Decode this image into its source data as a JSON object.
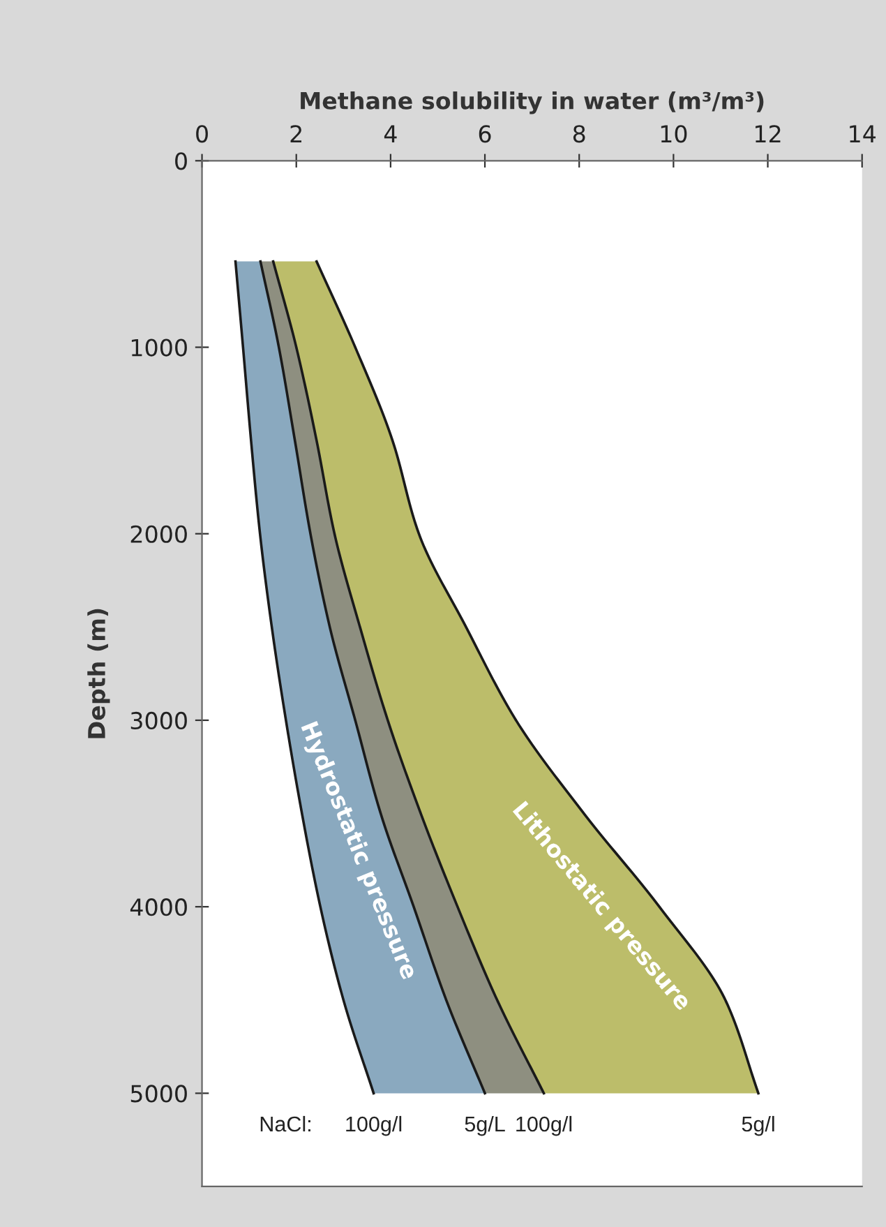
{
  "chart_data": {
    "type": "area",
    "orientation": "horizontal",
    "stacked": true,
    "xlabel": "Methane solubility in water (m³/m³)",
    "ylabel": "Depth (m)",
    "x": [
      540,
      1000,
      1500,
      2000,
      2500,
      3000,
      3500,
      4000,
      4500,
      5000
    ],
    "series": [
      {
        "name": "100g/l",
        "color": "#ffffff",
        "values": [
          0.71,
          0.87,
          1.04,
          1.23,
          1.48,
          1.78,
          2.12,
          2.51,
          3.0,
          3.64
        ]
      },
      {
        "name": "5g/L",
        "color": "#8aa9bf",
        "values": [
          0.53,
          0.76,
          0.93,
          1.07,
          1.23,
          1.47,
          1.67,
          1.98,
          2.18,
          2.36
        ]
      },
      {
        "name": "100g/l",
        "color": "#8e8f80",
        "values": [
          0.27,
          0.37,
          0.46,
          0.51,
          0.64,
          0.69,
          0.85,
          0.93,
          1.08,
          1.25
        ]
      },
      {
        "name": "5g/l",
        "color": "#bcbd6a",
        "values": [
          0.92,
          1.25,
          1.61,
          1.79,
          2.25,
          2.72,
          3.46,
          4.28,
          4.84,
          4.55
        ]
      }
    ],
    "annotations": [
      "Hydrostatic pressure",
      "Lithostatic pressure",
      "NaCl:"
    ],
    "xlim": [
      0,
      14
    ],
    "xticks": [
      0,
      2,
      4,
      6,
      8,
      10,
      12,
      14
    ],
    "ylim": [
      5500,
      0
    ],
    "yticks": [
      0,
      1000,
      2000,
      3000,
      4000,
      5000
    ],
    "grid": false,
    "legend": false
  }
}
